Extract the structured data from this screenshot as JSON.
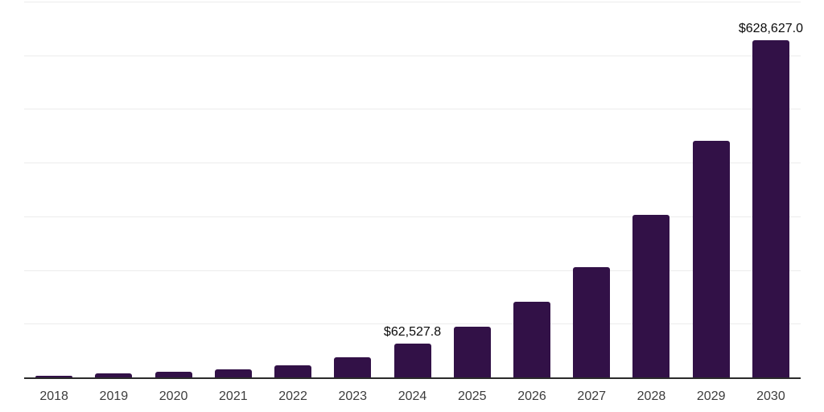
{
  "chart_data": {
    "type": "bar",
    "title": "",
    "xlabel": "",
    "ylabel": "",
    "categories": [
      "2018",
      "2019",
      "2020",
      "2021",
      "2022",
      "2023",
      "2024",
      "2025",
      "2026",
      "2027",
      "2028",
      "2029",
      "2030"
    ],
    "values": [
      2500,
      7000,
      10000,
      14500,
      23200,
      38200,
      62527.8,
      94400,
      141000,
      205000,
      302500,
      440000,
      628627.0
    ],
    "value_labels": {
      "2024": "$62,527.8",
      "2030": "$628,627.0"
    },
    "ylim": [
      0,
      700000
    ],
    "gridline_step": 100000,
    "grid": true,
    "legend": false,
    "y_axis_tick_labels_visible": false,
    "appearance": {
      "bar_color": "#321147",
      "grid_color": "#ececec",
      "axis_color": "#2b2b2b",
      "tick_label_color": "#3c3c3c",
      "value_label_color": "#0a0a0a",
      "background_color": "#ffffff"
    }
  }
}
